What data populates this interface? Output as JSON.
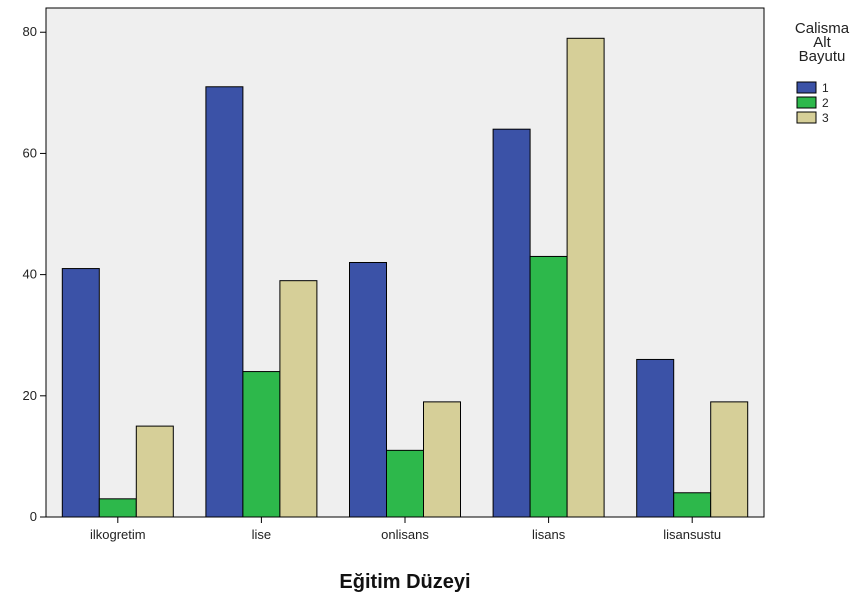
{
  "chart_data": {
    "type": "bar",
    "title": "",
    "xlabel": "Eğitim Düzeyi",
    "ylabel": "",
    "ylim": [
      0,
      84
    ],
    "yticks": [
      0,
      20,
      40,
      60,
      80
    ],
    "grid": false,
    "legend_placement": "top-right",
    "legend_title": [
      "Calisma",
      "Alt",
      "Bayutu"
    ],
    "categories": [
      "ilkogretim",
      "lise",
      "onlisans",
      "lisans",
      "lisansustu"
    ],
    "series": [
      {
        "name": "1",
        "color": "#3b52a7",
        "values": [
          41,
          71,
          42,
          64,
          26
        ]
      },
      {
        "name": "2",
        "color": "#2db84b",
        "values": [
          3,
          24,
          11,
          43,
          4
        ]
      },
      {
        "name": "3",
        "color": "#d6cf98",
        "values": [
          15,
          39,
          19,
          79,
          19
        ]
      }
    ],
    "plot_background": "#efefef"
  }
}
